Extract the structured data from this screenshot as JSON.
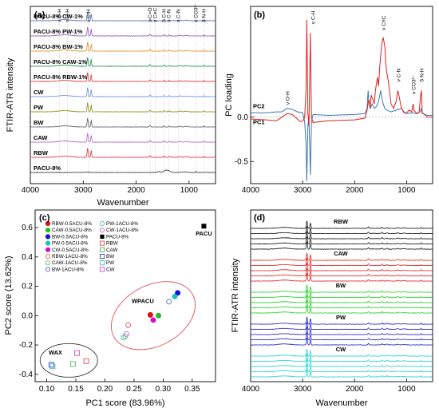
{
  "chart_data": [
    {
      "panel": "(a)",
      "type": "line",
      "xlabel": "Wavenumber",
      "ylabel": "FTIR-ATR intensity",
      "xlim": [
        4000,
        500
      ],
      "xticks": [
        4000,
        3000,
        2000,
        1000
      ],
      "x_reversed": true,
      "series": [
        {
          "name": "PACU-8%",
          "color": "#333333"
        },
        {
          "name": "RBW",
          "color": "#e0303a"
        },
        {
          "name": "CAW",
          "color": "#b060c8"
        },
        {
          "name": "BW",
          "color": "#606060"
        },
        {
          "name": "PW",
          "color": "#8a8a10"
        },
        {
          "name": "CW",
          "color": "#6c8cd0"
        },
        {
          "name": "PACU-8% RBW-1%",
          "color": "#e03030"
        },
        {
          "name": "PACU-8% CAW-1%",
          "color": "#208c50"
        },
        {
          "name": "PACU-8% BW-1%",
          "color": "#e09020"
        },
        {
          "name": "PACU-8% PW-1%",
          "color": "#9050b8"
        },
        {
          "name": "PACU-8% CW-1%",
          "color": "#5070b0"
        }
      ],
      "band_labels": [
        {
          "text": "ν O-H",
          "x": 3450
        },
        {
          "text": "ν O-H",
          "x": 3300
        },
        {
          "text": "ν C-H",
          "x": 2900
        },
        {
          "text": "ν C=O",
          "x": 1735
        },
        {
          "text": "ν C≡C",
          "x": 1640
        },
        {
          "text": "δ C-H",
          "x": 1470
        },
        {
          "text": "ν C-N",
          "x": 1380
        },
        {
          "text": "ν C-N",
          "x": 1200
        },
        {
          "text": "ν CO3²⁻",
          "x": 870
        },
        {
          "text": "δ N-H",
          "x": 720
        }
      ]
    },
    {
      "panel": "(b)",
      "type": "line",
      "ylabel": "PC loading",
      "xlim": [
        4000,
        500
      ],
      "ylim": [
        -0.75,
        1.25
      ],
      "xticks": [
        4000,
        3000,
        2000,
        1000
      ],
      "yticks": [
        0.0,
        -0.5
      ],
      "x_reversed": true,
      "series": [
        {
          "name": "PC1",
          "color": "#e02020",
          "points": [
            [
              4000,
              -0.02
            ],
            [
              3700,
              -0.03
            ],
            [
              3500,
              -0.04
            ],
            [
              3400,
              0.0
            ],
            [
              3300,
              0.04
            ],
            [
              3200,
              0.03
            ],
            [
              3100,
              -0.02
            ],
            [
              3050,
              -0.05
            ],
            [
              2990,
              -0.04
            ],
            [
              2960,
              0.0
            ],
            [
              2935,
              0.3
            ],
            [
              2920,
              1.1
            ],
            [
              2900,
              0.05
            ],
            [
              2880,
              -0.1
            ],
            [
              2870,
              0.2
            ],
            [
              2850,
              0.95
            ],
            [
              2830,
              0.0
            ],
            [
              2800,
              -0.06
            ],
            [
              2500,
              -0.04
            ],
            [
              2000,
              -0.03
            ],
            [
              1800,
              -0.01
            ],
            [
              1760,
              0.08
            ],
            [
              1730,
              0.2
            ],
            [
              1700,
              0.1
            ],
            [
              1680,
              0.25
            ],
            [
              1650,
              0.2
            ],
            [
              1620,
              0.15
            ],
            [
              1600,
              0.3
            ],
            [
              1560,
              0.45
            ],
            [
              1540,
              0.35
            ],
            [
              1520,
              0.55
            ],
            [
              1490,
              0.75
            ],
            [
              1470,
              0.85
            ],
            [
              1450,
              0.9
            ],
            [
              1420,
              0.8
            ],
            [
              1400,
              0.6
            ],
            [
              1380,
              0.5
            ],
            [
              1350,
              0.4
            ],
            [
              1320,
              0.25
            ],
            [
              1300,
              0.15
            ],
            [
              1250,
              0.1
            ],
            [
              1200,
              0.18
            ],
            [
              1170,
              0.3
            ],
            [
              1150,
              0.25
            ],
            [
              1100,
              0.1
            ],
            [
              1050,
              0.05
            ],
            [
              1000,
              0.05
            ],
            [
              950,
              0.08
            ],
            [
              900,
              0.06
            ],
            [
              875,
              0.15
            ],
            [
              860,
              0.08
            ],
            [
              800,
              0.04
            ],
            [
              760,
              0.06
            ],
            [
              730,
              0.25
            ],
            [
              715,
              0.3
            ],
            [
              700,
              0.05
            ],
            [
              600,
              0.0
            ],
            [
              500,
              0.0
            ]
          ]
        },
        {
          "name": "PC2",
          "color": "#3a78b8",
          "points": [
            [
              4000,
              0.05
            ],
            [
              3700,
              0.05
            ],
            [
              3500,
              0.06
            ],
            [
              3400,
              0.06
            ],
            [
              3300,
              0.1
            ],
            [
              3200,
              0.09
            ],
            [
              3100,
              0.06
            ],
            [
              3000,
              0.05
            ],
            [
              2960,
              -0.05
            ],
            [
              2935,
              -0.3
            ],
            [
              2920,
              -0.72
            ],
            [
              2900,
              -0.1
            ],
            [
              2880,
              0.0
            ],
            [
              2870,
              -0.2
            ],
            [
              2850,
              -0.65
            ],
            [
              2830,
              -0.05
            ],
            [
              2800,
              0.03
            ],
            [
              2500,
              0.02
            ],
            [
              2000,
              0.03
            ],
            [
              1800,
              0.04
            ],
            [
              1760,
              0.1
            ],
            [
              1740,
              0.3
            ],
            [
              1730,
              0.22
            ],
            [
              1700,
              0.1
            ],
            [
              1660,
              0.15
            ],
            [
              1620,
              0.1
            ],
            [
              1580,
              0.12
            ],
            [
              1540,
              0.18
            ],
            [
              1500,
              0.3
            ],
            [
              1470,
              0.2
            ],
            [
              1450,
              0.15
            ],
            [
              1420,
              0.1
            ],
            [
              1380,
              0.08
            ],
            [
              1300,
              0.06
            ],
            [
              1200,
              0.08
            ],
            [
              1100,
              0.1
            ],
            [
              1050,
              0.06
            ],
            [
              1000,
              0.04
            ],
            [
              900,
              0.05
            ],
            [
              800,
              0.04
            ],
            [
              740,
              0.06
            ],
            [
              720,
              0.1
            ],
            [
              700,
              0.04
            ],
            [
              600,
              0.02
            ],
            [
              500,
              0.02
            ]
          ]
        }
      ],
      "annotations": [
        "ν C-H",
        "ν O-H",
        "ν C≡C",
        "ν C-N",
        "ν CO3²⁻",
        "δ N-H",
        "PC1",
        "PC2"
      ]
    },
    {
      "panel": "(c)",
      "type": "scatter",
      "xlabel": "PC1 score (83.96%)",
      "ylabel": "PC2 score (13.62%)",
      "xlim": [
        0.08,
        0.39
      ],
      "ylim": [
        -0.45,
        0.72
      ],
      "xticks": [
        0.1,
        0.15,
        0.2,
        0.25,
        0.3,
        0.35
      ],
      "yticks": [
        0.6,
        0.4,
        0.2,
        0.0,
        -0.2,
        -0.4
      ],
      "group_labels": [
        "PACU",
        "WPACU",
        "WAX"
      ],
      "series": [
        {
          "name": "RBW-0.5ACU-8%",
          "color": "#e01010",
          "marker": "filled-circle",
          "points": [
            [
              0.278,
              0.005
            ]
          ]
        },
        {
          "name": "CAW-0.5ACU-8%",
          "color": "#20c020",
          "marker": "filled-circle",
          "points": [
            [
              0.292,
              0.0
            ]
          ]
        },
        {
          "name": "BW-0.5ACU-8%",
          "color": "#1010d0",
          "marker": "filled-circle",
          "points": [
            [
              0.325,
              0.155
            ]
          ]
        },
        {
          "name": "PW-0.5ACU-8%",
          "color": "#20c0c0",
          "marker": "filled-circle",
          "points": [
            [
              0.32,
              0.13
            ]
          ]
        },
        {
          "name": "CW-0.5ACU-8%",
          "color": "#d010d0",
          "marker": "filled-circle",
          "points": [
            [
              0.283,
              -0.03
            ]
          ]
        },
        {
          "name": "RBW-1ACU-8%",
          "color": "#e06060",
          "marker": "open-circle",
          "points": [
            [
              0.24,
              -0.065
            ]
          ]
        },
        {
          "name": "CAW-1ACU-8%",
          "color": "#60c060",
          "marker": "open-circle",
          "points": [
            [
              0.235,
              -0.14
            ]
          ]
        },
        {
          "name": "BW-1ACU-8%",
          "color": "#6060d0",
          "marker": "open-circle",
          "points": [
            [
              0.31,
              0.095
            ]
          ]
        },
        {
          "name": "PW-1ACU-8%",
          "color": "#40c0c0",
          "marker": "open-circle",
          "points": [
            [
              0.232,
              -0.15
            ]
          ]
        },
        {
          "name": "CW-1ACU-8%",
          "color": "#d060d0",
          "marker": "open-circle",
          "points": [
            [
              0.237,
              -0.125
            ]
          ]
        },
        {
          "name": "PACU-8%",
          "color": "#000000",
          "marker": "filled-square",
          "points": [
            [
              0.37,
              0.61
            ]
          ]
        },
        {
          "name": "RBW",
          "color": "#e05050",
          "marker": "open-square",
          "points": [
            [
              0.168,
              -0.31
            ]
          ]
        },
        {
          "name": "CAW",
          "color": "#50c050",
          "marker": "open-square",
          "points": [
            [
              0.145,
              -0.33
            ]
          ]
        },
        {
          "name": "BW",
          "color": "#4040c0",
          "marker": "open-square",
          "points": [
            [
              0.108,
              -0.335
            ]
          ]
        },
        {
          "name": "PW",
          "color": "#40c0c0",
          "marker": "open-square",
          "points": [
            [
              0.11,
              -0.345
            ]
          ]
        },
        {
          "name": "CW",
          "color": "#d050d0",
          "marker": "open-square",
          "points": [
            [
              0.152,
              -0.255
            ]
          ]
        }
      ]
    },
    {
      "panel": "(d)",
      "type": "line",
      "xlabel": "Wavenumber",
      "ylabel": "FTIR-ATR intensity",
      "xlim": [
        4000,
        500
      ],
      "xticks": [
        4000,
        3000,
        2000,
        1000
      ],
      "x_reversed": true,
      "groups": [
        {
          "name": "RBW",
          "color": "#111111"
        },
        {
          "name": "CAW",
          "color": "#e02020"
        },
        {
          "name": "BW",
          "color": "#20d020"
        },
        {
          "name": "PW",
          "color": "#2020c8"
        },
        {
          "name": "CW",
          "color": "#20d0d0"
        }
      ]
    }
  ]
}
